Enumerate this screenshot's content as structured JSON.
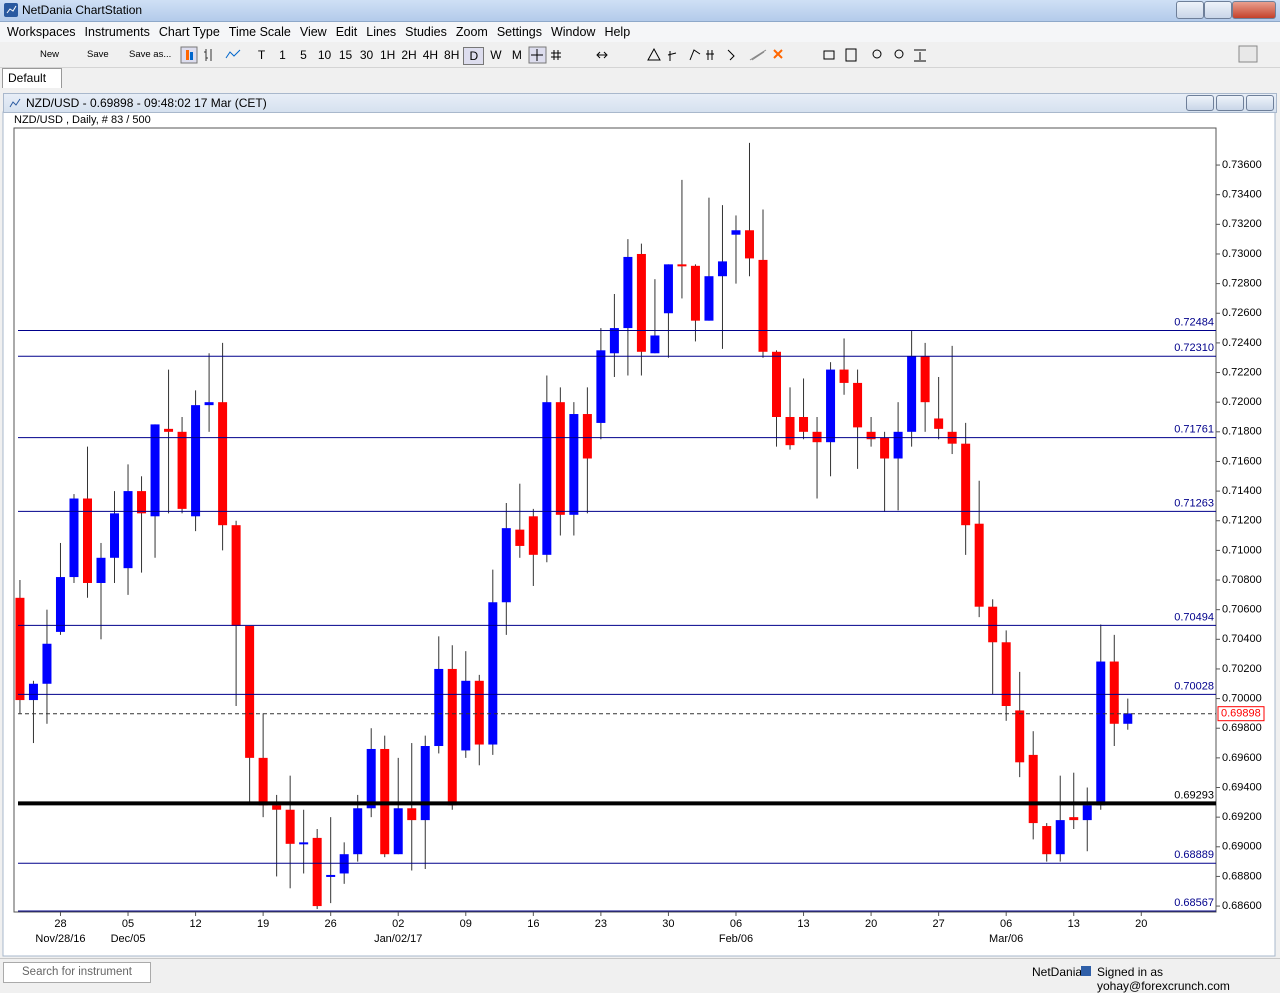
{
  "window": {
    "title": "NetDania ChartStation"
  },
  "menu": [
    "Workspaces",
    "Instruments",
    "Chart Type",
    "Time Scale",
    "View",
    "Edit",
    "Lines",
    "Studies",
    "Zoom",
    "Settings",
    "Window",
    "Help"
  ],
  "toolbar": {
    "file_buttons": [
      "New",
      "Save",
      "Save as..."
    ],
    "timeframes": [
      "T",
      "1",
      "5",
      "10",
      "15",
      "30",
      "1H",
      "2H",
      "4H",
      "8H",
      "D",
      "W",
      "M"
    ]
  },
  "tab": "Default",
  "chart_window": {
    "title": "NZD/USD - 0.69898 - 09:48:02 17 Mar (CET)"
  },
  "chart_data": {
    "type": "candlestick",
    "subtitle": "NZD/USD , Daily, # 83 / 500",
    "up_color": "#0000ff",
    "down_color": "#ff0000",
    "wick_color": "#333333",
    "level_color": "#00008b",
    "emphasis_color": "#000000",
    "xlim": [
      -0.44,
      88.53
    ],
    "ylim": [
      0.6856,
      0.7385
    ],
    "yticks": [
      {
        "value": 0.686,
        "label": "0.68600"
      },
      {
        "value": 0.688,
        "label": "0.68800"
      },
      {
        "value": 0.69,
        "label": "0.69000"
      },
      {
        "value": 0.692,
        "label": "0.69200"
      },
      {
        "value": 0.694,
        "label": "0.69400"
      },
      {
        "value": 0.696,
        "label": "0.69600"
      },
      {
        "value": 0.698,
        "label": "0.69800"
      },
      {
        "value": 0.7,
        "label": "0.70000"
      },
      {
        "value": 0.702,
        "label": "0.70200"
      },
      {
        "value": 0.704,
        "label": "0.70400"
      },
      {
        "value": 0.706,
        "label": "0.70600"
      },
      {
        "value": 0.708,
        "label": "0.70800"
      },
      {
        "value": 0.71,
        "label": "0.71000"
      },
      {
        "value": 0.712,
        "label": "0.71200"
      },
      {
        "value": 0.714,
        "label": "0.71400"
      },
      {
        "value": 0.716,
        "label": "0.71600"
      },
      {
        "value": 0.718,
        "label": "0.71800"
      },
      {
        "value": 0.72,
        "label": "0.72000"
      },
      {
        "value": 0.722,
        "label": "0.72200"
      },
      {
        "value": 0.724,
        "label": "0.72400"
      },
      {
        "value": 0.726,
        "label": "0.72600"
      },
      {
        "value": 0.728,
        "label": "0.72800"
      },
      {
        "value": 0.73,
        "label": "0.73000"
      },
      {
        "value": 0.732,
        "label": "0.73200"
      },
      {
        "value": 0.734,
        "label": "0.73400"
      },
      {
        "value": 0.736,
        "label": "0.73600"
      }
    ],
    "xticks": [
      {
        "value": 3,
        "label": "28"
      },
      {
        "value": 8,
        "label": "05"
      },
      {
        "value": 13,
        "label": "12"
      },
      {
        "value": 18,
        "label": "19"
      },
      {
        "value": 23,
        "label": "26"
      },
      {
        "value": 28,
        "label": "02"
      },
      {
        "value": 33,
        "label": "09"
      },
      {
        "value": 38,
        "label": "16"
      },
      {
        "value": 43,
        "label": "23"
      },
      {
        "value": 48,
        "label": "30"
      },
      {
        "value": 53,
        "label": "06"
      },
      {
        "value": 58,
        "label": "13"
      },
      {
        "value": 63,
        "label": "20"
      },
      {
        "value": 68,
        "label": "27"
      },
      {
        "value": 73,
        "label": "06"
      },
      {
        "value": 78,
        "label": "13"
      },
      {
        "value": 83,
        "label": "20"
      }
    ],
    "xticks_secondary": [
      {
        "value": 3,
        "label": "Nov/28/16"
      },
      {
        "value": 8,
        "label": "Dec/05"
      },
      {
        "value": 28,
        "label": "Jan/02/17"
      },
      {
        "value": 53,
        "label": "Feb/06"
      },
      {
        "value": 73,
        "label": "Mar/06"
      }
    ],
    "open": [
      0.7068,
      0.6999,
      0.701,
      0.7045,
      0.7082,
      0.7135,
      0.7078,
      0.7095,
      0.7088,
      0.714,
      0.7123,
      0.7182,
      0.718,
      0.7123,
      0.7198,
      0.72,
      0.7117,
      0.7049,
      0.696,
      0.6928,
      0.6925,
      0.6902,
      0.6906,
      0.688,
      0.6882,
      0.6895,
      0.6926,
      0.6966,
      0.6895,
      0.6926,
      0.6918,
      0.6968,
      0.702,
      0.6965,
      0.7012,
      0.6969,
      0.7065,
      0.7114,
      0.7123,
      0.7097,
      0.72,
      0.7124,
      0.7192,
      0.7186,
      0.7233,
      0.725,
      0.73,
      0.7233,
      0.726,
      0.7293,
      0.7292,
      0.7255,
      0.7285,
      0.7313,
      0.7316,
      0.7296,
      0.7234,
      0.719,
      0.719,
      0.718,
      0.7173,
      0.7222,
      0.7213,
      0.718,
      0.7176,
      0.7162,
      0.718,
      0.7231,
      0.7189,
      0.718,
      0.7172,
      0.7118,
      0.7062,
      0.7038,
      0.6992,
      0.6962,
      0.6914,
      0.6895,
      0.692,
      0.6918,
      0.6928,
      0.7025,
      0.6983
    ],
    "high": [
      0.708,
      0.7012,
      0.706,
      0.7105,
      0.7138,
      0.717,
      0.7105,
      0.714,
      0.7158,
      0.715,
      0.7185,
      0.7222,
      0.719,
      0.7208,
      0.7233,
      0.724,
      0.712,
      0.7049,
      0.699,
      0.6935,
      0.6948,
      0.6925,
      0.6912,
      0.692,
      0.6903,
      0.6935,
      0.698,
      0.6975,
      0.696,
      0.697,
      0.6975,
      0.7042,
      0.7036,
      0.7032,
      0.7016,
      0.7087,
      0.7132,
      0.7145,
      0.7128,
      0.7218,
      0.721,
      0.72,
      0.721,
      0.725,
      0.7273,
      0.731,
      0.7307,
      0.7283,
      0.7293,
      0.735,
      0.7293,
      0.7338,
      0.7333,
      0.7326,
      0.7375,
      0.733,
      0.7235,
      0.721,
      0.7216,
      0.719,
      0.7227,
      0.7243,
      0.7222,
      0.719,
      0.718,
      0.72,
      0.7248,
      0.724,
      0.7217,
      0.7238,
      0.7186,
      0.7147,
      0.7067,
      0.7046,
      0.7018,
      0.6978,
      0.6916,
      0.6948,
      0.695,
      0.694,
      0.705,
      0.7043,
      0.7
    ],
    "low": [
      0.699,
      0.697,
      0.6983,
      0.7043,
      0.7078,
      0.7068,
      0.704,
      0.7078,
      0.707,
      0.7085,
      0.7095,
      0.7125,
      0.7125,
      0.7113,
      0.718,
      0.71,
      0.6995,
      0.693,
      0.692,
      0.688,
      0.6872,
      0.6882,
      0.6858,
      0.6862,
      0.6875,
      0.689,
      0.692,
      0.6893,
      0.6895,
      0.6884,
      0.6885,
      0.6963,
      0.6925,
      0.696,
      0.6955,
      0.6962,
      0.7043,
      0.7095,
      0.7076,
      0.7092,
      0.711,
      0.711,
      0.7125,
      0.7175,
      0.7217,
      0.7218,
      0.7218,
      0.7233,
      0.723,
      0.727,
      0.7241,
      0.7255,
      0.7236,
      0.728,
      0.7285,
      0.723,
      0.717,
      0.7168,
      0.7175,
      0.7135,
      0.715,
      0.7205,
      0.7155,
      0.717,
      0.7126,
      0.7127,
      0.717,
      0.718,
      0.7175,
      0.7165,
      0.7097,
      0.7055,
      0.7003,
      0.6985,
      0.6947,
      0.6905,
      0.689,
      0.689,
      0.6912,
      0.6897,
      0.6925,
      0.6968,
      0.6979
    ],
    "close": [
      0.6999,
      0.701,
      0.7037,
      0.7082,
      0.7135,
      0.7078,
      0.7095,
      0.7125,
      0.714,
      0.7125,
      0.7185,
      0.718,
      0.7128,
      0.7198,
      0.72,
      0.7117,
      0.7049,
      0.696,
      0.6928,
      0.6925,
      0.6902,
      0.6903,
      0.686,
      0.6881,
      0.6895,
      0.6926,
      0.6966,
      0.6895,
      0.6926,
      0.6918,
      0.6968,
      0.702,
      0.6928,
      0.7012,
      0.6969,
      0.7065,
      0.7115,
      0.7103,
      0.7097,
      0.72,
      0.7124,
      0.7192,
      0.7162,
      0.7235,
      0.725,
      0.7298,
      0.7234,
      0.7245,
      0.7293,
      0.7292,
      0.7255,
      0.7285,
      0.7295,
      0.7316,
      0.7297,
      0.7234,
      0.719,
      0.7171,
      0.718,
      0.7173,
      0.7222,
      0.7213,
      0.7183,
      0.7175,
      0.7162,
      0.718,
      0.7231,
      0.72,
      0.7182,
      0.7172,
      0.7117,
      0.7062,
      0.7038,
      0.6995,
      0.6957,
      0.6916,
      0.6895,
      0.6918,
      0.6918,
      0.6928,
      0.7025,
      0.6983,
      0.699
    ],
    "levels": [
      {
        "value": 0.72484,
        "label": "0.72484"
      },
      {
        "value": 0.7231,
        "label": "0.72310"
      },
      {
        "value": 0.71761,
        "label": "0.71761"
      },
      {
        "value": 0.71263,
        "label": "0.71263"
      },
      {
        "value": 0.70494,
        "label": "0.70494"
      },
      {
        "value": 0.70028,
        "label": "0.70028"
      },
      {
        "value": 0.69293,
        "label": "0.69293",
        "emphasis": true
      },
      {
        "value": 0.68889,
        "label": "0.68889"
      },
      {
        "value": 0.68567,
        "label": "0.68567"
      }
    ],
    "last_price": {
      "value": 0.69898,
      "label": "0.69898",
      "color": "#ff0000"
    }
  },
  "status_bar": {
    "search_placeholder": "Search for instrument",
    "brand": "NetDania",
    "signed_in": "Signed in as yohay@forexcrunch.com"
  }
}
